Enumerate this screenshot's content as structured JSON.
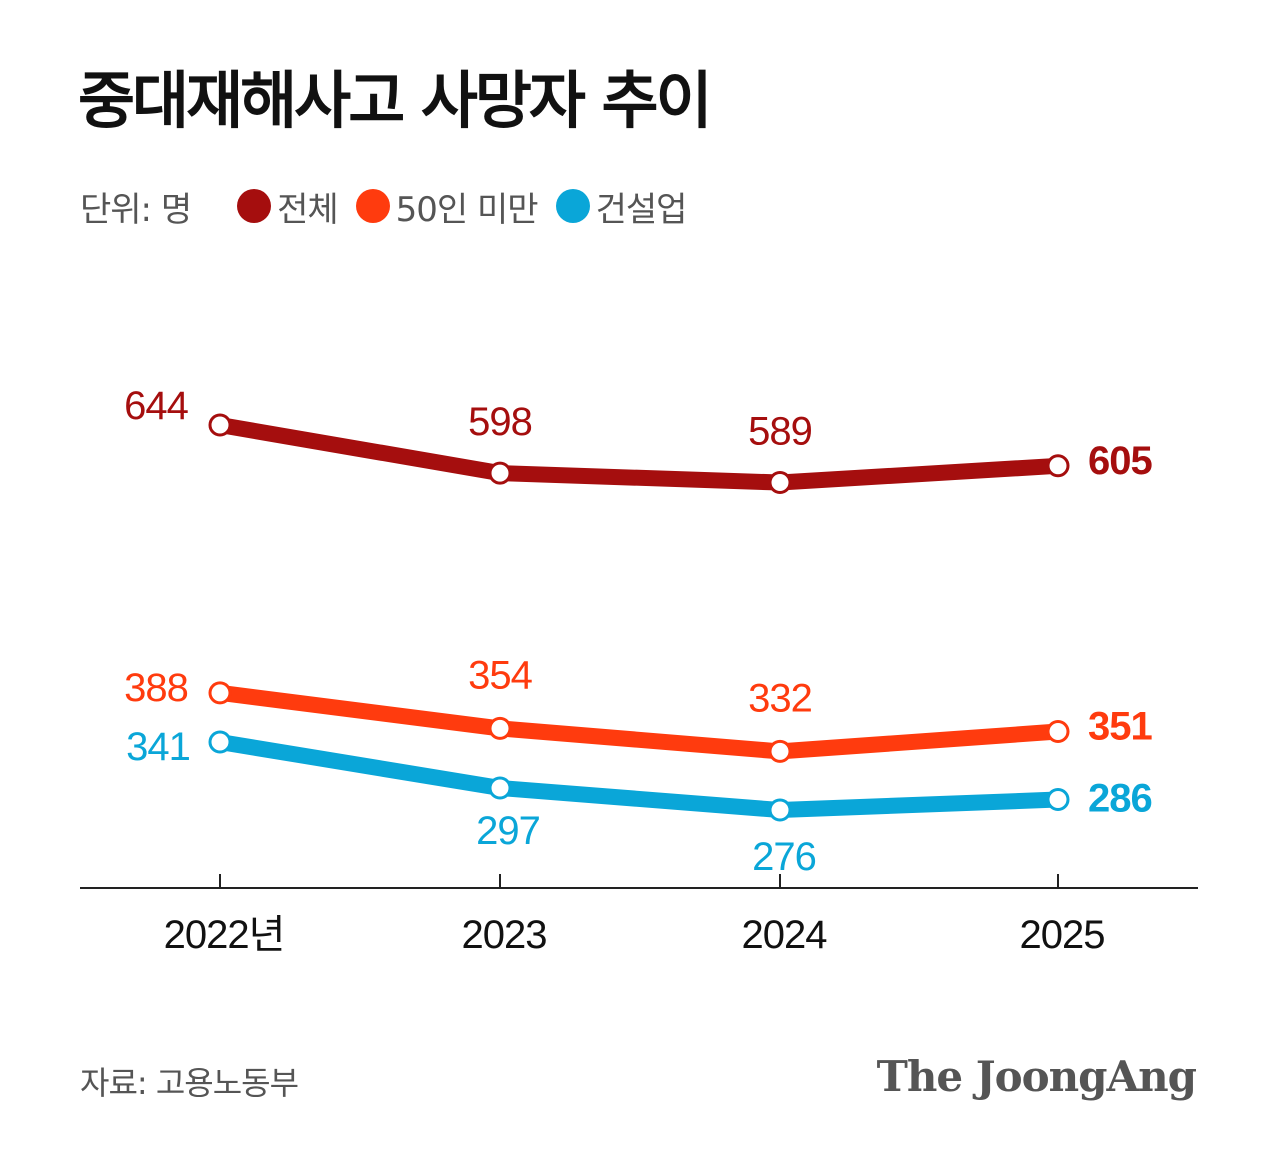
{
  "title": "중대재해사고 사망자 추이",
  "unit_label": "단위: 명",
  "source": "자료: 고용노동부",
  "logo": "The JoongAng",
  "colors": {
    "total": "#a50e0e",
    "under50": "#ff3b0e",
    "construction": "#0aa6d8",
    "axis": "#222222"
  },
  "chart_data": {
    "type": "line",
    "categories": [
      "2022년",
      "2023",
      "2024",
      "2025"
    ],
    "series": [
      {
        "key": "total",
        "name": "전체",
        "values": [
          644,
          598,
          589,
          605
        ],
        "labels": [
          "644",
          "598",
          "589",
          "605"
        ]
      },
      {
        "key": "under50",
        "name": "50인 미만",
        "values": [
          388,
          354,
          332,
          351
        ],
        "labels": [
          "388",
          "354",
          "332",
          "351"
        ]
      },
      {
        "key": "construction",
        "name": "건설업",
        "values": [
          341,
          297,
          276,
          286
        ],
        "labels": [
          "341",
          "297",
          "276",
          "286"
        ]
      }
    ],
    "ylim": [
      200,
      700
    ],
    "grid": false,
    "legend_position": "top-left"
  }
}
